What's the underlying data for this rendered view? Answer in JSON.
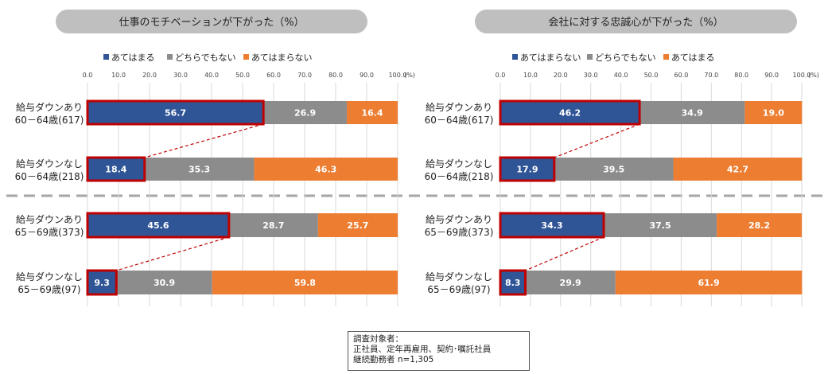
{
  "colors": {
    "agree": "#2f5597",
    "neutral": "#8c8c8c",
    "disagree": "#ed7d31",
    "highlight": "#c00000",
    "title_bg": "#bfbfbf",
    "separator": "#a6a6a6"
  },
  "chart_data": [
    {
      "type": "bar",
      "orientation": "horizontal",
      "stacked": true,
      "title": "仕事のモチベーションが下がった（%）",
      "xlim": [
        0,
        100
      ],
      "x_ticks": [
        "0.0",
        "10.0",
        "20.0",
        "30.0",
        "40.0",
        "50.0",
        "60.0",
        "70.0",
        "80.0",
        "90.0",
        "100.0"
      ],
      "x_unit": "(%)",
      "legend": [
        "あてはまる",
        "どちらでもない",
        "あてはまらない"
      ],
      "categories": [
        [
          "給与ダウンあり",
          "60－64歳(617)"
        ],
        [
          "給与ダウンなし",
          "60－64歳(218)"
        ],
        [
          "給与ダウンあり",
          "65－69歳(373)"
        ],
        [
          "給与ダウンなし",
          "65－69歳(97)"
        ]
      ],
      "series": [
        {
          "name": "あてはまる",
          "values": [
            56.7,
            18.4,
            45.6,
            9.3
          ],
          "labels": [
            "56.7",
            "18.4",
            "45.6",
            "9.3"
          ]
        },
        {
          "name": "どちらでもない",
          "values": [
            26.9,
            35.3,
            28.7,
            30.9
          ],
          "labels": [
            "26.9",
            "35.3",
            "28.7",
            "30.9"
          ]
        },
        {
          "name": "あてはまらない",
          "values": [
            16.4,
            46.3,
            25.7,
            59.8
          ],
          "labels": [
            "16.4",
            "46.3",
            "25.7",
            "59.8"
          ]
        }
      ],
      "highlight_series": 0
    },
    {
      "type": "bar",
      "orientation": "horizontal",
      "stacked": true,
      "title": "会社に対する忠誠心が下がった（%）",
      "xlim": [
        0,
        100
      ],
      "x_ticks": [
        "0.0",
        "10.0",
        "20.0",
        "30.0",
        "40.0",
        "50.0",
        "60.0",
        "70.0",
        "80.0",
        "90.0",
        "100.0"
      ],
      "x_unit": "(%)",
      "legend": [
        "あてはまらない",
        "どちらでもない",
        "あてはまる"
      ],
      "categories": [
        [
          "給与ダウンあり",
          "60－64歳(617)"
        ],
        [
          "給与ダウンなし",
          "60－64歳(218)"
        ],
        [
          "給与ダウンあり",
          "65－69歳(373)"
        ],
        [
          "給与ダウンなし",
          "65－69歳(97)"
        ]
      ],
      "series": [
        {
          "name": "あてはまらない",
          "values": [
            46.2,
            17.9,
            34.3,
            8.3
          ],
          "labels": [
            "46.2",
            "17.9",
            "34.3",
            "8.3"
          ]
        },
        {
          "name": "どちらでもない",
          "values": [
            34.9,
            39.5,
            37.5,
            29.9
          ],
          "labels": [
            "34.9",
            "39.5",
            "37.5",
            "29.9"
          ]
        },
        {
          "name": "あてはまる",
          "values": [
            19.0,
            42.7,
            28.2,
            61.9
          ],
          "labels": [
            "19.0",
            "42.7",
            "28.2",
            "61.9"
          ]
        }
      ],
      "highlight_series": 0
    }
  ],
  "note": {
    "lines": [
      "調査対象者：",
      "正社員、定年再雇用、契約･嘱託社員",
      "継続勤務者 n=1,305"
    ]
  }
}
